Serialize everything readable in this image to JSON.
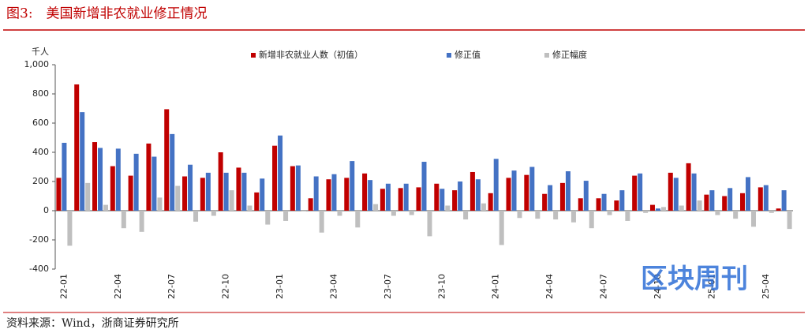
{
  "title": "图3:　美国新增非农就业修正情况",
  "source": "资料来源：Wind，浙商证券研究所",
  "watermark": "区块周刊",
  "chart_data": {
    "type": "bar",
    "unit_label": "千人",
    "categories": [
      "22-01",
      null,
      null,
      "22-04",
      null,
      null,
      "22-07",
      null,
      null,
      "22-10",
      null,
      null,
      "23-01",
      null,
      null,
      "23-04",
      null,
      null,
      "23-07",
      null,
      null,
      "23-10",
      null,
      null,
      "24-01",
      null,
      null,
      "24-04",
      null,
      null,
      "24-07",
      null,
      null,
      "24-10",
      null,
      null,
      "25-01",
      null,
      null,
      "25-04",
      null
    ],
    "series": [
      {
        "name": "新增非农就业人数（初值）",
        "color": "#c00000",
        "values": [
          225,
          865,
          470,
          305,
          240,
          460,
          695,
          235,
          225,
          400,
          295,
          125,
          445,
          305,
          85,
          215,
          225,
          255,
          150,
          155,
          160,
          185,
          140,
          265,
          120,
          225,
          245,
          115,
          190,
          85,
          85,
          70,
          240,
          40,
          260,
          325,
          110,
          100,
          120,
          160,
          15
        ]
      },
      {
        "name": "修正值",
        "color": "#4472c4",
        "values": [
          465,
          675,
          430,
          425,
          390,
          370,
          525,
          315,
          260,
          260,
          260,
          220,
          515,
          310,
          235,
          250,
          340,
          210,
          185,
          185,
          335,
          150,
          200,
          215,
          355,
          275,
          300,
          175,
          270,
          205,
          115,
          140,
          255,
          15,
          225,
          255,
          140,
          155,
          230,
          175,
          140
        ]
      },
      {
        "name": "修正幅度",
        "color": "#bfbfbf",
        "values": [
          -240,
          190,
          40,
          -120,
          -145,
          90,
          170,
          -75,
          -35,
          140,
          35,
          -95,
          -70,
          -5,
          -150,
          -35,
          -115,
          45,
          -35,
          -30,
          -175,
          35,
          -60,
          50,
          -235,
          -50,
          -55,
          -60,
          -80,
          -120,
          -30,
          -70,
          -15,
          25,
          35,
          70,
          -30,
          -55,
          -110,
          -15,
          -125
        ]
      }
    ],
    "ylim": [
      -400,
      1000
    ],
    "yticks": [
      -400,
      -200,
      0,
      200,
      400,
      600,
      800,
      {
        "value": 1000,
        "label": "1,000"
      }
    ]
  }
}
